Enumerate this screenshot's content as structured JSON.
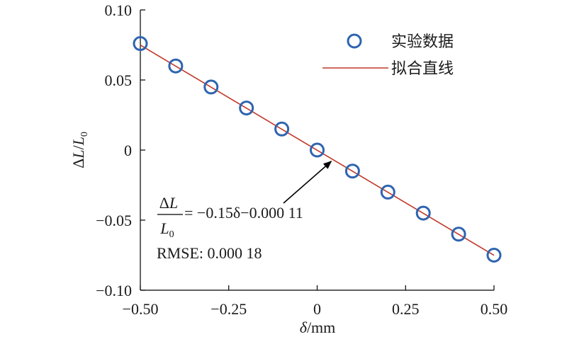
{
  "chart_data": {
    "type": "scatter",
    "xlabel": "δ/mm",
    "ylabel": "ΔL/L0",
    "xlim": [
      -0.5,
      0.5
    ],
    "ylim": [
      -0.1,
      0.1
    ],
    "xticks": [
      "−0.50",
      "−0.25",
      "0",
      "0.25",
      "0.50"
    ],
    "yticks": [
      "0.10",
      "0.05",
      "0",
      "−0.05",
      "−0.10"
    ],
    "xtick_values": [
      -0.5,
      -0.25,
      0,
      0.25,
      0.5
    ],
    "ytick_values": [
      0.1,
      0.05,
      0,
      -0.05,
      -0.1
    ],
    "grid": false,
    "legend_position": "top-right",
    "series": [
      {
        "name": "实验数据",
        "kind": "scatter",
        "marker": "hollow-circle",
        "color": "#2e64b0",
        "x": [
          -0.5,
          -0.4,
          -0.3,
          -0.2,
          -0.1,
          0.0,
          0.1,
          0.2,
          0.3,
          0.4,
          0.5
        ],
        "y": [
          0.076,
          0.06,
          0.045,
          0.03,
          0.015,
          0.0,
          -0.015,
          -0.03,
          -0.045,
          -0.06,
          -0.075
        ]
      },
      {
        "name": "拟合直线",
        "kind": "line",
        "color": "#c0392b",
        "slope": -0.15,
        "intercept": -0.00011
      }
    ],
    "annotation": {
      "fraction_numerator": "ΔL",
      "fraction_denominator": "L0",
      "equation": "= −0.15δ−0.000 11",
      "rmse": "RMSE: 0.000 18",
      "arrow_target": [
        0.04,
        -0.008
      ]
    }
  }
}
